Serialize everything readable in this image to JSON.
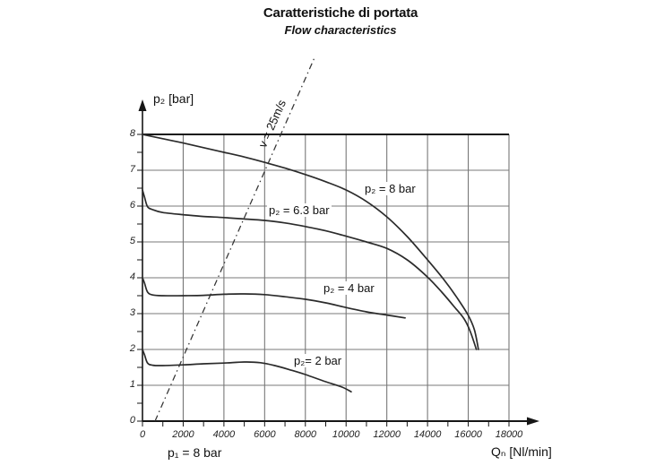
{
  "chart_data": {
    "type": "line",
    "title": "Caratteristiche di portata",
    "subtitle": "Flow characteristics",
    "xlabel": "Qₙ [Nl/min]",
    "ylabel": "p₂ [bar]",
    "inlet_pressure_note": "p₁ = 8 bar",
    "xlim": [
      0,
      18000
    ],
    "ylim": [
      0,
      8
    ],
    "x_ticks": [
      0,
      2000,
      4000,
      6000,
      8000,
      10000,
      12000,
      14000,
      16000,
      18000
    ],
    "y_ticks": [
      0,
      1,
      2,
      3,
      4,
      5,
      6,
      7,
      8
    ],
    "x_minor_tick_step": 1000,
    "y_minor_tick_step": 0.5,
    "grid": true,
    "legend_position": "inline-labels",
    "series": [
      {
        "name": "p₂ = 8 bar",
        "points": [
          [
            0,
            8
          ],
          [
            1000,
            7.88
          ],
          [
            2000,
            7.76
          ],
          [
            3000,
            7.63
          ],
          [
            4000,
            7.5
          ],
          [
            5000,
            7.37
          ],
          [
            6000,
            7.22
          ],
          [
            7000,
            7.06
          ],
          [
            8000,
            6.88
          ],
          [
            9000,
            6.68
          ],
          [
            10000,
            6.45
          ],
          [
            11000,
            6.13
          ],
          [
            12000,
            5.7
          ],
          [
            13000,
            5.15
          ],
          [
            14000,
            4.5
          ],
          [
            14800,
            3.95
          ],
          [
            15500,
            3.4
          ],
          [
            16000,
            2.95
          ],
          [
            16300,
            2.55
          ],
          [
            16500,
            2.0
          ]
        ]
      },
      {
        "name": "p₂ = 6.3 bar",
        "points": [
          [
            0,
            6.45
          ],
          [
            100,
            6.25
          ],
          [
            250,
            5.98
          ],
          [
            500,
            5.9
          ],
          [
            1000,
            5.82
          ],
          [
            2000,
            5.76
          ],
          [
            3000,
            5.71
          ],
          [
            4000,
            5.68
          ],
          [
            5000,
            5.64
          ],
          [
            6000,
            5.6
          ],
          [
            7000,
            5.53
          ],
          [
            8000,
            5.43
          ],
          [
            9000,
            5.31
          ],
          [
            10000,
            5.16
          ],
          [
            11000,
            5.0
          ],
          [
            12000,
            4.82
          ],
          [
            13000,
            4.5
          ],
          [
            14000,
            4.02
          ],
          [
            14700,
            3.6
          ],
          [
            15300,
            3.2
          ],
          [
            15800,
            2.85
          ],
          [
            16100,
            2.5
          ],
          [
            16400,
            2.0
          ]
        ]
      },
      {
        "name": "p₂ = 4 bar",
        "points": [
          [
            0,
            4.0
          ],
          [
            100,
            3.85
          ],
          [
            250,
            3.6
          ],
          [
            500,
            3.52
          ],
          [
            1000,
            3.5
          ],
          [
            2000,
            3.5
          ],
          [
            3000,
            3.51
          ],
          [
            4000,
            3.54
          ],
          [
            5000,
            3.55
          ],
          [
            6000,
            3.53
          ],
          [
            7000,
            3.47
          ],
          [
            8000,
            3.4
          ],
          [
            9000,
            3.3
          ],
          [
            10000,
            3.17
          ],
          [
            11000,
            3.05
          ],
          [
            12000,
            2.96
          ],
          [
            12900,
            2.88
          ]
        ]
      },
      {
        "name": "p₂= 2 bar",
        "points": [
          [
            0,
            2.0
          ],
          [
            100,
            1.85
          ],
          [
            250,
            1.62
          ],
          [
            500,
            1.56
          ],
          [
            1000,
            1.55
          ],
          [
            2000,
            1.57
          ],
          [
            3000,
            1.6
          ],
          [
            4000,
            1.62
          ],
          [
            5000,
            1.65
          ],
          [
            5800,
            1.63
          ],
          [
            6500,
            1.55
          ],
          [
            7200,
            1.44
          ],
          [
            8000,
            1.3
          ],
          [
            9000,
            1.1
          ],
          [
            9800,
            0.95
          ],
          [
            10250,
            0.82
          ]
        ]
      }
    ],
    "velocity_line": {
      "label": "v = 25m/s",
      "style": "dash-dot",
      "points": [
        [
          616,
          0
        ],
        [
          6795,
          8
        ]
      ]
    }
  },
  "colors": {
    "background": "#ffffff",
    "text": "#1a1a1a",
    "curve": "#2b2b2b",
    "grid": "#787878",
    "axis": "#161616"
  }
}
